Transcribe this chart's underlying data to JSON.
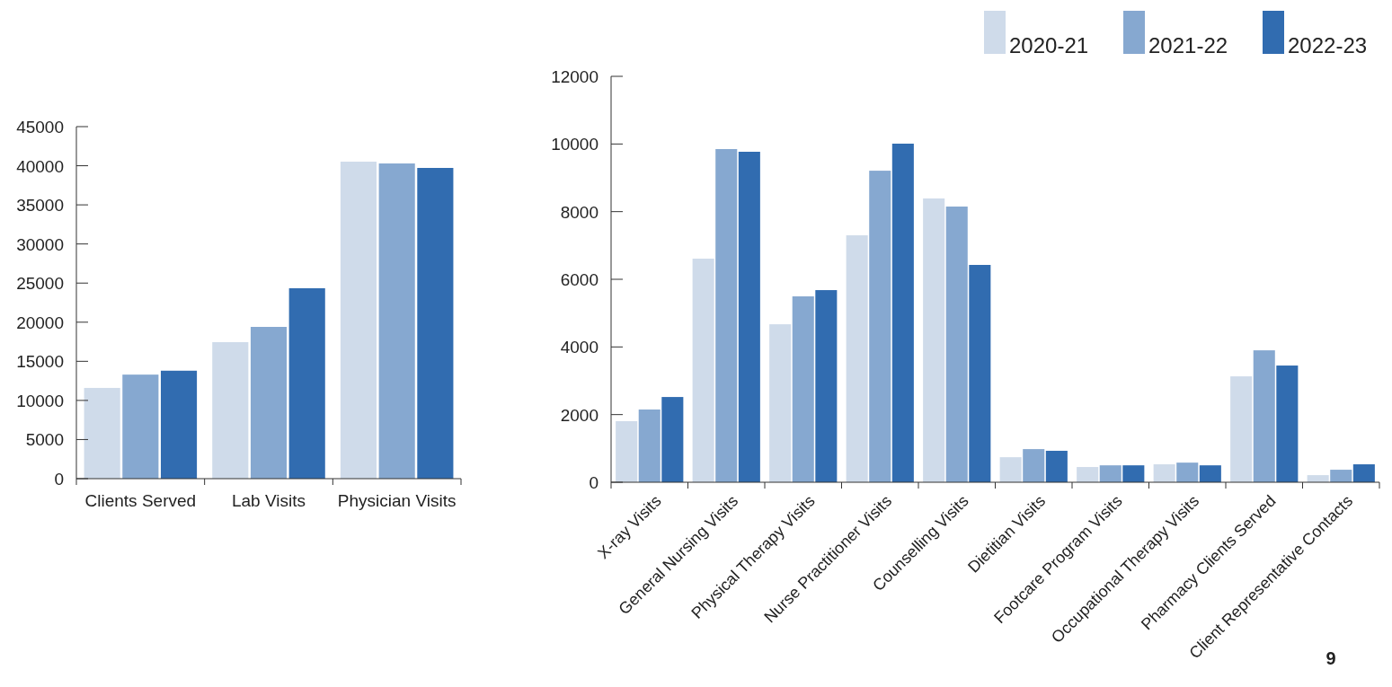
{
  "chart_data": [
    {
      "type": "bar",
      "categories": [
        "Clients Served",
        "Lab Visits",
        "Physician Visits"
      ],
      "series": [
        {
          "color": "#cfdbea",
          "values": [
            11600,
            17450,
            40520
          ]
        },
        {
          "color": "#86a8d0",
          "values": [
            13300,
            19400,
            40290
          ]
        },
        {
          "color": "#316cb0",
          "values": [
            13800,
            24340,
            39720
          ]
        }
      ],
      "ylim": [
        0,
        45000
      ],
      "yticks": [
        0,
        5000,
        10000,
        15000,
        20000,
        25000,
        30000,
        35000,
        40000,
        45000
      ],
      "grid": false,
      "legend": false
    },
    {
      "type": "bar",
      "categories": [
        "X-ray Visits",
        "General Nursing Visits",
        "Physical Therapy Visits",
        "Nurse Practitioner Visits",
        "Counselling Visits",
        "Dietitian Visits",
        "Footcare Program Visits",
        "Occupational Therapy Visits",
        "Pharmacy Clients Served",
        "Client Representative Contacts"
      ],
      "series": [
        {
          "name": "2020-21",
          "color": "#cfdbea",
          "values": [
            1805,
            6610,
            4670,
            7300,
            8390,
            740,
            450,
            530,
            3130,
            210
          ]
        },
        {
          "name": "2021-22",
          "color": "#86a8d0",
          "values": [
            2150,
            9850,
            5495,
            9210,
            8150,
            980,
            500,
            580,
            3900,
            370
          ]
        },
        {
          "name": "2022-23",
          "color": "#316cb0",
          "values": [
            2520,
            9770,
            5680,
            10010,
            6425,
            930,
            500,
            500,
            3450,
            530
          ]
        }
      ],
      "ylim": [
        0,
        12000
      ],
      "yticks": [
        0,
        2000,
        4000,
        6000,
        8000,
        10000,
        12000
      ],
      "grid": false,
      "legend": "top right",
      "annotations": [
        "9"
      ]
    }
  ]
}
